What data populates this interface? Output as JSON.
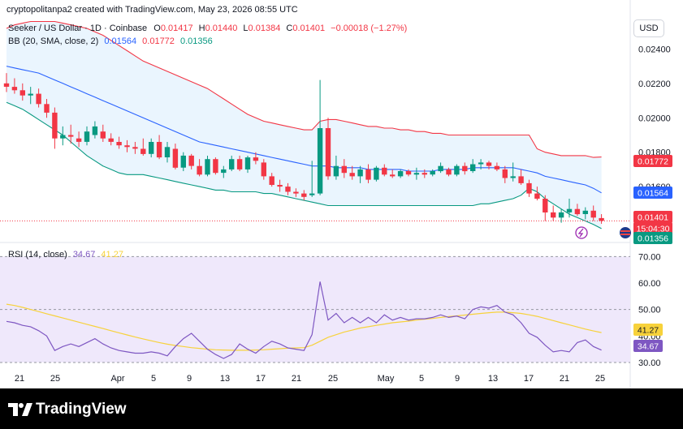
{
  "credit": "cryptopolitanpa2 created with TradingView.com, May 23, 2026 08:55 UTC",
  "currency_button": "USD",
  "legend": {
    "symbol": "Seeker / US Dollar · 1D · Coinbase",
    "o_label": "O",
    "o_value": "0.01417",
    "h_label": "H",
    "h_value": "0.01440",
    "l_label": "L",
    "l_value": "0.01384",
    "c_label": "C",
    "c_value": "0.01401",
    "change": "−0.00018 (−1.27%)",
    "bb_title": "BB (20, SMA, close, 2)",
    "bb_basis": "0.01564",
    "bb_upper": "0.01772",
    "bb_lower": "0.01356",
    "rsi_title": "RSI (14, close)",
    "rsi_value": "34.67",
    "rsi_ma": "41.27"
  },
  "price_axis": {
    "ticks": [
      "0.02400",
      "0.02200",
      "0.02000",
      "0.01800",
      "0.01600"
    ],
    "badges": [
      {
        "text": "0.01772",
        "color": "#f23645"
      },
      {
        "text": "0.01564",
        "color": "#2962ff"
      },
      {
        "text": "0.01401",
        "color": "#f23645"
      },
      {
        "text": "15:04:30",
        "color": "#f23645"
      },
      {
        "text": "0.01356",
        "color": "#089981"
      }
    ]
  },
  "rsi_axis": {
    "ticks": [
      "70.00",
      "60.00",
      "50.00",
      "40.00",
      "30.00"
    ],
    "badges": [
      {
        "text": "41.27",
        "color": "#f7d23b",
        "text_color": "#131722"
      },
      {
        "text": "34.67",
        "color": "#7e57c2",
        "text_color": "#ffffff"
      }
    ]
  },
  "time_axis": [
    "21",
    "25",
    "Apr",
    "5",
    "9",
    "13",
    "17",
    "21",
    "25",
    "May",
    "5",
    "9",
    "13",
    "17",
    "21",
    "25"
  ],
  "footer": {
    "logo_text": "TradingView"
  },
  "colors": {
    "up": "#089981",
    "down": "#f23645",
    "bb_upper": "#f23645",
    "bb_basis": "#2962ff",
    "bb_lower": "#089981",
    "bb_fill": "#e3f2fd",
    "rsi_line": "#7e57c2",
    "rsi_ma": "#f7d23b",
    "rsi_band": "#efe8fb"
  },
  "chart_data": {
    "type": "candlestick",
    "title": "Seeker / US Dollar · 1D · Coinbase",
    "y_range": [
      0.0128,
      0.026
    ],
    "rsi_range": [
      26,
      75
    ],
    "candles": [
      [
        0.022,
        0.0226,
        0.0215,
        0.0218
      ],
      [
        0.0218,
        0.0223,
        0.0214,
        0.0216
      ],
      [
        0.0216,
        0.022,
        0.021,
        0.0213
      ],
      [
        0.0213,
        0.0218,
        0.0208,
        0.0214
      ],
      [
        0.0214,
        0.0217,
        0.0206,
        0.0208
      ],
      [
        0.0208,
        0.0211,
        0.02,
        0.0203
      ],
      [
        0.0203,
        0.0206,
        0.0182,
        0.0188
      ],
      [
        0.0188,
        0.0195,
        0.0184,
        0.019
      ],
      [
        0.019,
        0.0196,
        0.0185,
        0.0189
      ],
      [
        0.0188,
        0.0192,
        0.0183,
        0.0186
      ],
      [
        0.0186,
        0.0195,
        0.0184,
        0.0192
      ],
      [
        0.019,
        0.0198,
        0.0188,
        0.0195
      ],
      [
        0.0192,
        0.0196,
        0.0186,
        0.0188
      ],
      [
        0.0188,
        0.0191,
        0.0184,
        0.0186
      ],
      [
        0.0186,
        0.0189,
        0.0182,
        0.0184
      ],
      [
        0.0184,
        0.0187,
        0.018,
        0.0183
      ],
      [
        0.0183,
        0.0186,
        0.0179,
        0.0182
      ],
      [
        0.0182,
        0.0188,
        0.0178,
        0.0179
      ],
      [
        0.0179,
        0.0188,
        0.0177,
        0.0186
      ],
      [
        0.0186,
        0.019,
        0.0176,
        0.0177
      ],
      [
        0.0177,
        0.0186,
        0.0174,
        0.0183
      ],
      [
        0.0182,
        0.0185,
        0.017,
        0.0171
      ],
      [
        0.0171,
        0.018,
        0.0169,
        0.0178
      ],
      [
        0.0178,
        0.0179,
        0.017,
        0.0172
      ],
      [
        0.0172,
        0.0176,
        0.0166,
        0.0167
      ],
      [
        0.0167,
        0.0178,
        0.0166,
        0.0176
      ],
      [
        0.0176,
        0.0177,
        0.0167,
        0.0168
      ],
      [
        0.0168,
        0.0172,
        0.0165,
        0.017
      ],
      [
        0.017,
        0.0178,
        0.0169,
        0.0176
      ],
      [
        0.0176,
        0.0178,
        0.0169,
        0.017
      ],
      [
        0.017,
        0.0178,
        0.0168,
        0.0177
      ],
      [
        0.0177,
        0.018,
        0.0173,
        0.0175
      ],
      [
        0.0174,
        0.0176,
        0.0164,
        0.0166
      ],
      [
        0.0166,
        0.0168,
        0.016,
        0.0161
      ],
      [
        0.0161,
        0.0164,
        0.0157,
        0.016
      ],
      [
        0.016,
        0.0162,
        0.0155,
        0.0157
      ],
      [
        0.0157,
        0.0159,
        0.0154,
        0.0156
      ],
      [
        0.0156,
        0.0158,
        0.0152,
        0.0154
      ],
      [
        0.0155,
        0.0175,
        0.0154,
        0.0156
      ],
      [
        0.0156,
        0.0222,
        0.0155,
        0.0194
      ],
      [
        0.0194,
        0.02,
        0.0164,
        0.0166
      ],
      [
        0.0166,
        0.0178,
        0.0164,
        0.0172
      ],
      [
        0.0172,
        0.0176,
        0.0165,
        0.0168
      ],
      [
        0.0168,
        0.0172,
        0.0164,
        0.0166
      ],
      [
        0.0166,
        0.0172,
        0.0162,
        0.017
      ],
      [
        0.017,
        0.0173,
        0.0162,
        0.0164
      ],
      [
        0.0164,
        0.0172,
        0.0163,
        0.0171
      ],
      [
        0.0171,
        0.0173,
        0.0166,
        0.0167
      ],
      [
        0.0167,
        0.017,
        0.0165,
        0.0166
      ],
      [
        0.0166,
        0.017,
        0.0165,
        0.0169
      ],
      [
        0.0169,
        0.017,
        0.0166,
        0.0167
      ],
      [
        0.0167,
        0.0171,
        0.0164,
        0.0168
      ],
      [
        0.0168,
        0.017,
        0.0165,
        0.0167
      ],
      [
        0.0167,
        0.017,
        0.0166,
        0.0169
      ],
      [
        0.0169,
        0.0174,
        0.0168,
        0.0172
      ],
      [
        0.017,
        0.0171,
        0.0166,
        0.0167
      ],
      [
        0.0167,
        0.0173,
        0.0166,
        0.0172
      ],
      [
        0.0172,
        0.0174,
        0.0167,
        0.0169
      ],
      [
        0.0169,
        0.0176,
        0.0168,
        0.0173
      ],
      [
        0.0173,
        0.0176,
        0.017,
        0.0174
      ],
      [
        0.0174,
        0.0175,
        0.017,
        0.0172
      ],
      [
        0.0172,
        0.0174,
        0.0169,
        0.017
      ],
      [
        0.017,
        0.0172,
        0.0162,
        0.0165
      ],
      [
        0.0165,
        0.0174,
        0.0163,
        0.0166
      ],
      [
        0.0166,
        0.017,
        0.0161,
        0.0162
      ],
      [
        0.0162,
        0.0164,
        0.0154,
        0.0156
      ],
      [
        0.0156,
        0.016,
        0.0152,
        0.0153
      ],
      [
        0.0153,
        0.0155,
        0.014,
        0.0145
      ],
      [
        0.0145,
        0.0149,
        0.014,
        0.0142
      ],
      [
        0.0142,
        0.0147,
        0.0139,
        0.0145
      ],
      [
        0.0145,
        0.0153,
        0.0142,
        0.0147
      ],
      [
        0.0147,
        0.015,
        0.0143,
        0.0144
      ],
      [
        0.0144,
        0.0148,
        0.0141,
        0.0146
      ],
      [
        0.0146,
        0.0149,
        0.014,
        0.0142
      ],
      [
        0.01417,
        0.0144,
        0.01384,
        0.01401
      ]
    ],
    "bb_upper": [
      0.0252,
      0.0254,
      0.0255,
      0.0256,
      0.0256,
      0.0256,
      0.0256,
      0.0255,
      0.0254,
      0.0253,
      0.0252,
      0.025,
      0.0248,
      0.0245,
      0.0242,
      0.0239,
      0.0236,
      0.0233,
      0.0231,
      0.0229,
      0.0227,
      0.0225,
      0.0223,
      0.0221,
      0.0219,
      0.0217,
      0.0214,
      0.0211,
      0.0208,
      0.0205,
      0.0202,
      0.02,
      0.0198,
      0.0197,
      0.0196,
      0.0195,
      0.0194,
      0.0193,
      0.0193,
      0.0198,
      0.0199,
      0.0199,
      0.0198,
      0.0197,
      0.0196,
      0.0195,
      0.0195,
      0.0194,
      0.0194,
      0.0193,
      0.0193,
      0.0192,
      0.0192,
      0.0191,
      0.0191,
      0.019,
      0.019,
      0.019,
      0.019,
      0.019,
      0.019,
      0.019,
      0.019,
      0.019,
      0.019,
      0.019,
      0.0182,
      0.018,
      0.0179,
      0.0178,
      0.0178,
      0.0178,
      0.0178,
      0.0177,
      0.01772
    ],
    "bb_basis": [
      0.023,
      0.0229,
      0.0228,
      0.0227,
      0.0226,
      0.0224,
      0.0222,
      0.022,
      0.0218,
      0.0216,
      0.0214,
      0.0212,
      0.021,
      0.0208,
      0.0206,
      0.0204,
      0.0202,
      0.02,
      0.0198,
      0.0196,
      0.0194,
      0.0192,
      0.019,
      0.0188,
      0.0186,
      0.0185,
      0.0184,
      0.0183,
      0.0182,
      0.0181,
      0.018,
      0.0179,
      0.0178,
      0.0177,
      0.0176,
      0.0175,
      0.0174,
      0.0173,
      0.0172,
      0.0172,
      0.0172,
      0.0171,
      0.0171,
      0.0171,
      0.0171,
      0.017,
      0.017,
      0.017,
      0.017,
      0.017,
      0.0169,
      0.0169,
      0.0169,
      0.0169,
      0.017,
      0.017,
      0.017,
      0.017,
      0.0171,
      0.0171,
      0.0171,
      0.0171,
      0.0171,
      0.0171,
      0.017,
      0.0169,
      0.0168,
      0.0166,
      0.0165,
      0.0164,
      0.0163,
      0.0162,
      0.0161,
      0.0159,
      0.01564
    ],
    "bb_lower": [
      0.0209,
      0.0207,
      0.0205,
      0.0202,
      0.0199,
      0.0196,
      0.0193,
      0.019,
      0.0186,
      0.0182,
      0.0178,
      0.0175,
      0.0172,
      0.017,
      0.0168,
      0.0167,
      0.0167,
      0.0167,
      0.0166,
      0.0165,
      0.0164,
      0.0163,
      0.0162,
      0.0161,
      0.016,
      0.0159,
      0.0158,
      0.0158,
      0.0157,
      0.0157,
      0.0157,
      0.0157,
      0.0156,
      0.0156,
      0.0155,
      0.0154,
      0.0153,
      0.0152,
      0.0151,
      0.015,
      0.0149,
      0.0149,
      0.0149,
      0.0149,
      0.0149,
      0.0149,
      0.0149,
      0.0149,
      0.0149,
      0.0149,
      0.0149,
      0.0149,
      0.0149,
      0.0149,
      0.0149,
      0.0149,
      0.0149,
      0.0149,
      0.0149,
      0.015,
      0.015,
      0.0151,
      0.0152,
      0.0153,
      0.0155,
      0.0159,
      0.0157,
      0.0153,
      0.015,
      0.0147,
      0.0144,
      0.0142,
      0.014,
      0.0138,
      0.01356
    ],
    "rsi": [
      45.5,
      45,
      44,
      43.5,
      42,
      40,
      34.5,
      36,
      37,
      36,
      37.5,
      39,
      37,
      35.5,
      34.5,
      34,
      33.5,
      33.5,
      34,
      33.5,
      32.5,
      36,
      39,
      41,
      38,
      35,
      33,
      31.5,
      33,
      37,
      35,
      33.5,
      36,
      38,
      37,
      35.5,
      35,
      34.5,
      40.5,
      60.5,
      46,
      48.5,
      45,
      47,
      45,
      47,
      45,
      48,
      46,
      47,
      46,
      46.5,
      46.5,
      47,
      48,
      47,
      47.5,
      46.5,
      50,
      51,
      50.5,
      51.5,
      49,
      48,
      45,
      41,
      39.5,
      36.5,
      34,
      34.5,
      34,
      37.5,
      38.5,
      36,
      34.67
    ],
    "rsi_ma": [
      52,
      51.5,
      50.8,
      50,
      49.2,
      48.4,
      47.6,
      46.8,
      46,
      45.2,
      44.4,
      43.6,
      42.8,
      42,
      41.2,
      40.4,
      39.6,
      38.9,
      38.2,
      37.5,
      36.9,
      36.4,
      36,
      35.6,
      35.3,
      35,
      34.8,
      34.7,
      34.6,
      34.6,
      34.6,
      34.7,
      34.8,
      35,
      35.2,
      35.4,
      35.5,
      35.6,
      36.5,
      38,
      39.5,
      40.5,
      41.5,
      42.2,
      43,
      43.5,
      44,
      44.5,
      45,
      45.3,
      45.6,
      46,
      46.3,
      46.6,
      47,
      47.3,
      47.6,
      47.9,
      48.2,
      48.5,
      48.8,
      49,
      49,
      48.8,
      48.5,
      48,
      47.4,
      46.6,
      45.8,
      45,
      44.2,
      43.4,
      42.6,
      41.9,
      41.27
    ],
    "rsi_levels": [
      70,
      50,
      30
    ]
  }
}
